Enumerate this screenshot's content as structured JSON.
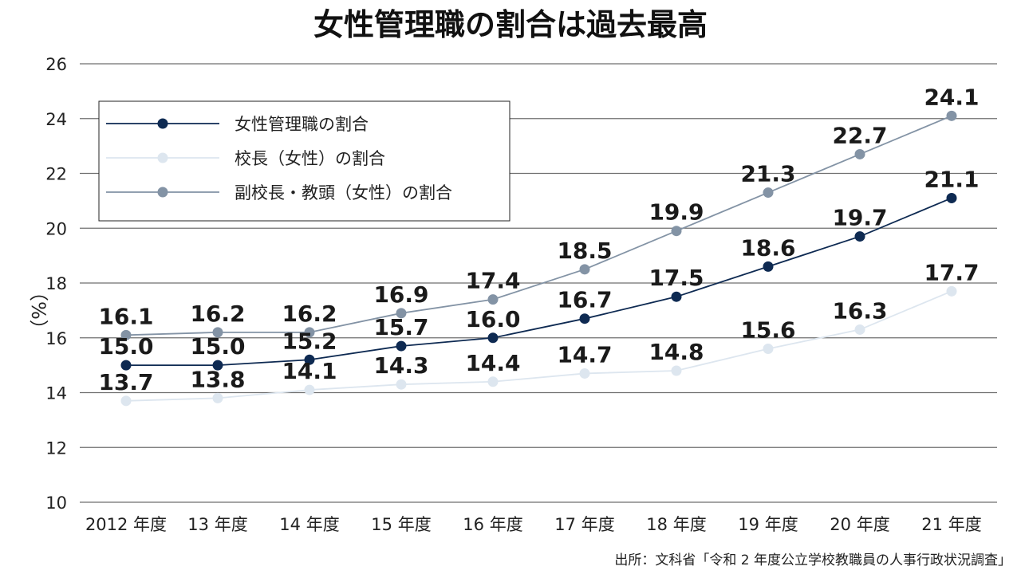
{
  "chart_data": {
    "type": "line",
    "title": "女性管理職の割合は過去最高",
    "ylabel": "（%）",
    "xlabel": "",
    "categories": [
      "2012 年度",
      "13 年度",
      "14 年度",
      "15 年度",
      "16 年度",
      "17 年度",
      "18 年度",
      "19 年度",
      "20 年度",
      "21 年度"
    ],
    "ylim": [
      10,
      26
    ],
    "yticks": [
      10,
      12,
      14,
      16,
      18,
      20,
      22,
      24,
      26
    ],
    "grid": true,
    "legend_position": "top-left",
    "series": [
      {
        "name": "女性管理職の割合",
        "color": "#0e2a52",
        "values": [
          15.0,
          15.0,
          15.2,
          15.7,
          16.0,
          16.7,
          17.5,
          18.6,
          19.7,
          21.1
        ],
        "labels": [
          "15.0",
          "15.0",
          "15.2",
          "15.7",
          "16.0",
          "16.7",
          "17.5",
          "18.6",
          "19.7",
          "21.1"
        ]
      },
      {
        "name": "校長（女性）の割合",
        "color": "#dde6ef",
        "values": [
          13.7,
          13.8,
          14.1,
          14.3,
          14.4,
          14.7,
          14.8,
          15.6,
          16.3,
          17.7
        ],
        "labels": [
          "13.7",
          "13.8",
          "14.1",
          "14.3",
          "14.4",
          "14.7",
          "14.8",
          "15.6",
          "16.3",
          "17.7"
        ]
      },
      {
        "name": "副校長・教頭（女性）の割合",
        "color": "#8393a5",
        "values": [
          16.1,
          16.2,
          16.2,
          16.9,
          17.4,
          18.5,
          19.9,
          21.3,
          22.7,
          24.1
        ],
        "labels": [
          "16.1",
          "16.2",
          "16.2",
          "16.9",
          "17.4",
          "18.5",
          "19.9",
          "21.3",
          "22.7",
          "24.1"
        ]
      }
    ],
    "source": "出所：文科省「令和 2 年度公立学校教職員の人事行政状況調査」"
  }
}
